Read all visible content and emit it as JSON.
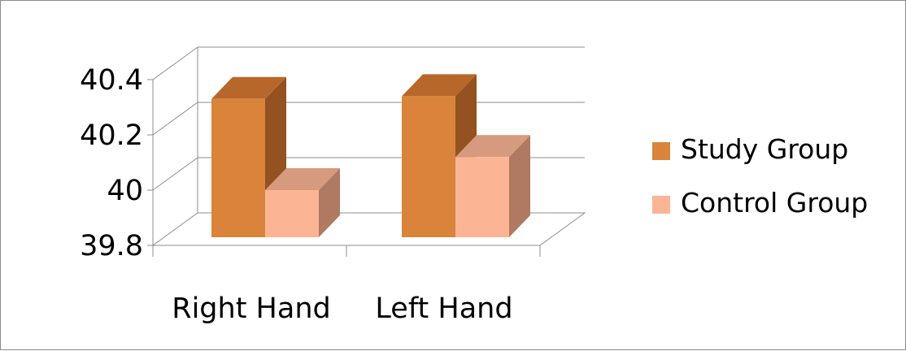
{
  "chart_data": {
    "type": "bar",
    "style": "3d-clustered-column",
    "categories": [
      "Right Hand",
      "Left Hand"
    ],
    "series": [
      {
        "name": "Study Group",
        "values": [
          40.33,
          40.34
        ],
        "color": "#d9843a",
        "side_color": "#93521f",
        "top_color": "#b8672a"
      },
      {
        "name": "Control Group",
        "values": [
          40.0,
          40.12
        ],
        "color": "#fbb595",
        "side_color": "#b07a62",
        "top_color": "#d69a7e"
      }
    ],
    "y_ticks": [
      "39.8",
      "40",
      "40.2",
      "40.4"
    ],
    "ylim": [
      39.8,
      40.4
    ],
    "grid": true,
    "legend_position": "right",
    "title": "",
    "xlabel": "",
    "ylabel": ""
  }
}
